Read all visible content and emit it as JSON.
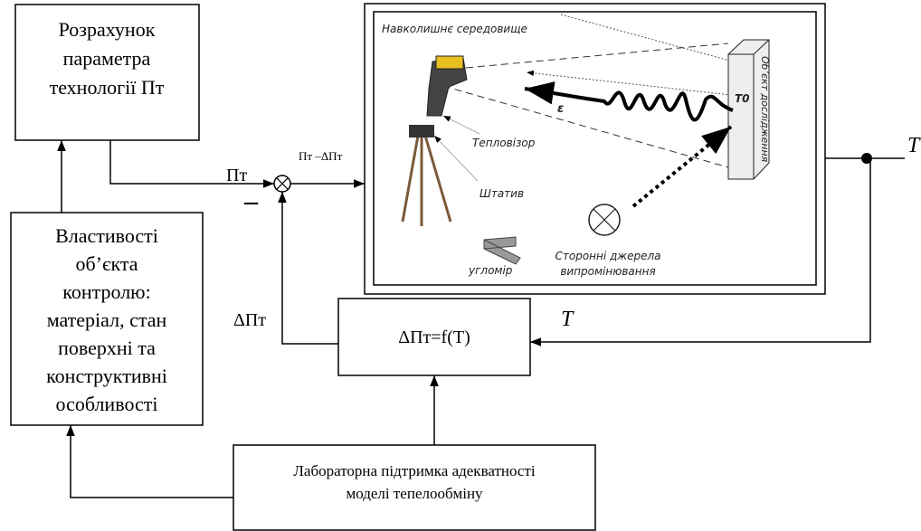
{
  "blocks": {
    "calc": {
      "lines": [
        "Розрахунок",
        "параметра",
        "технології Пт"
      ]
    },
    "props": {
      "lines": [
        "Властивості",
        "об’єкта",
        "контролю:",
        "матеріал, стан",
        "поверхні та",
        "конструктивні",
        "особливості"
      ]
    },
    "lab": {
      "lines": [
        "Лабораторна підтримка адекватності",
        "моделі тепелообміну"
      ]
    },
    "func": {
      "label": "ΔПт=f(T)"
    }
  },
  "signals": {
    "param": "Пт",
    "minus": "–",
    "diff": "Пт –ΔПт",
    "correction": "ΔПт",
    "output": "T",
    "feedback": "T"
  },
  "scene": {
    "environment": "Навколишнє середовище",
    "camera": "Тепловізор",
    "tripod": "Штатив",
    "protractor": "угломір",
    "sources": [
      "Сторонні джерела",
      "випромінювання"
    ],
    "object": "Об’єкт дослідження",
    "temperature": "T0",
    "emissivity": "ε"
  }
}
